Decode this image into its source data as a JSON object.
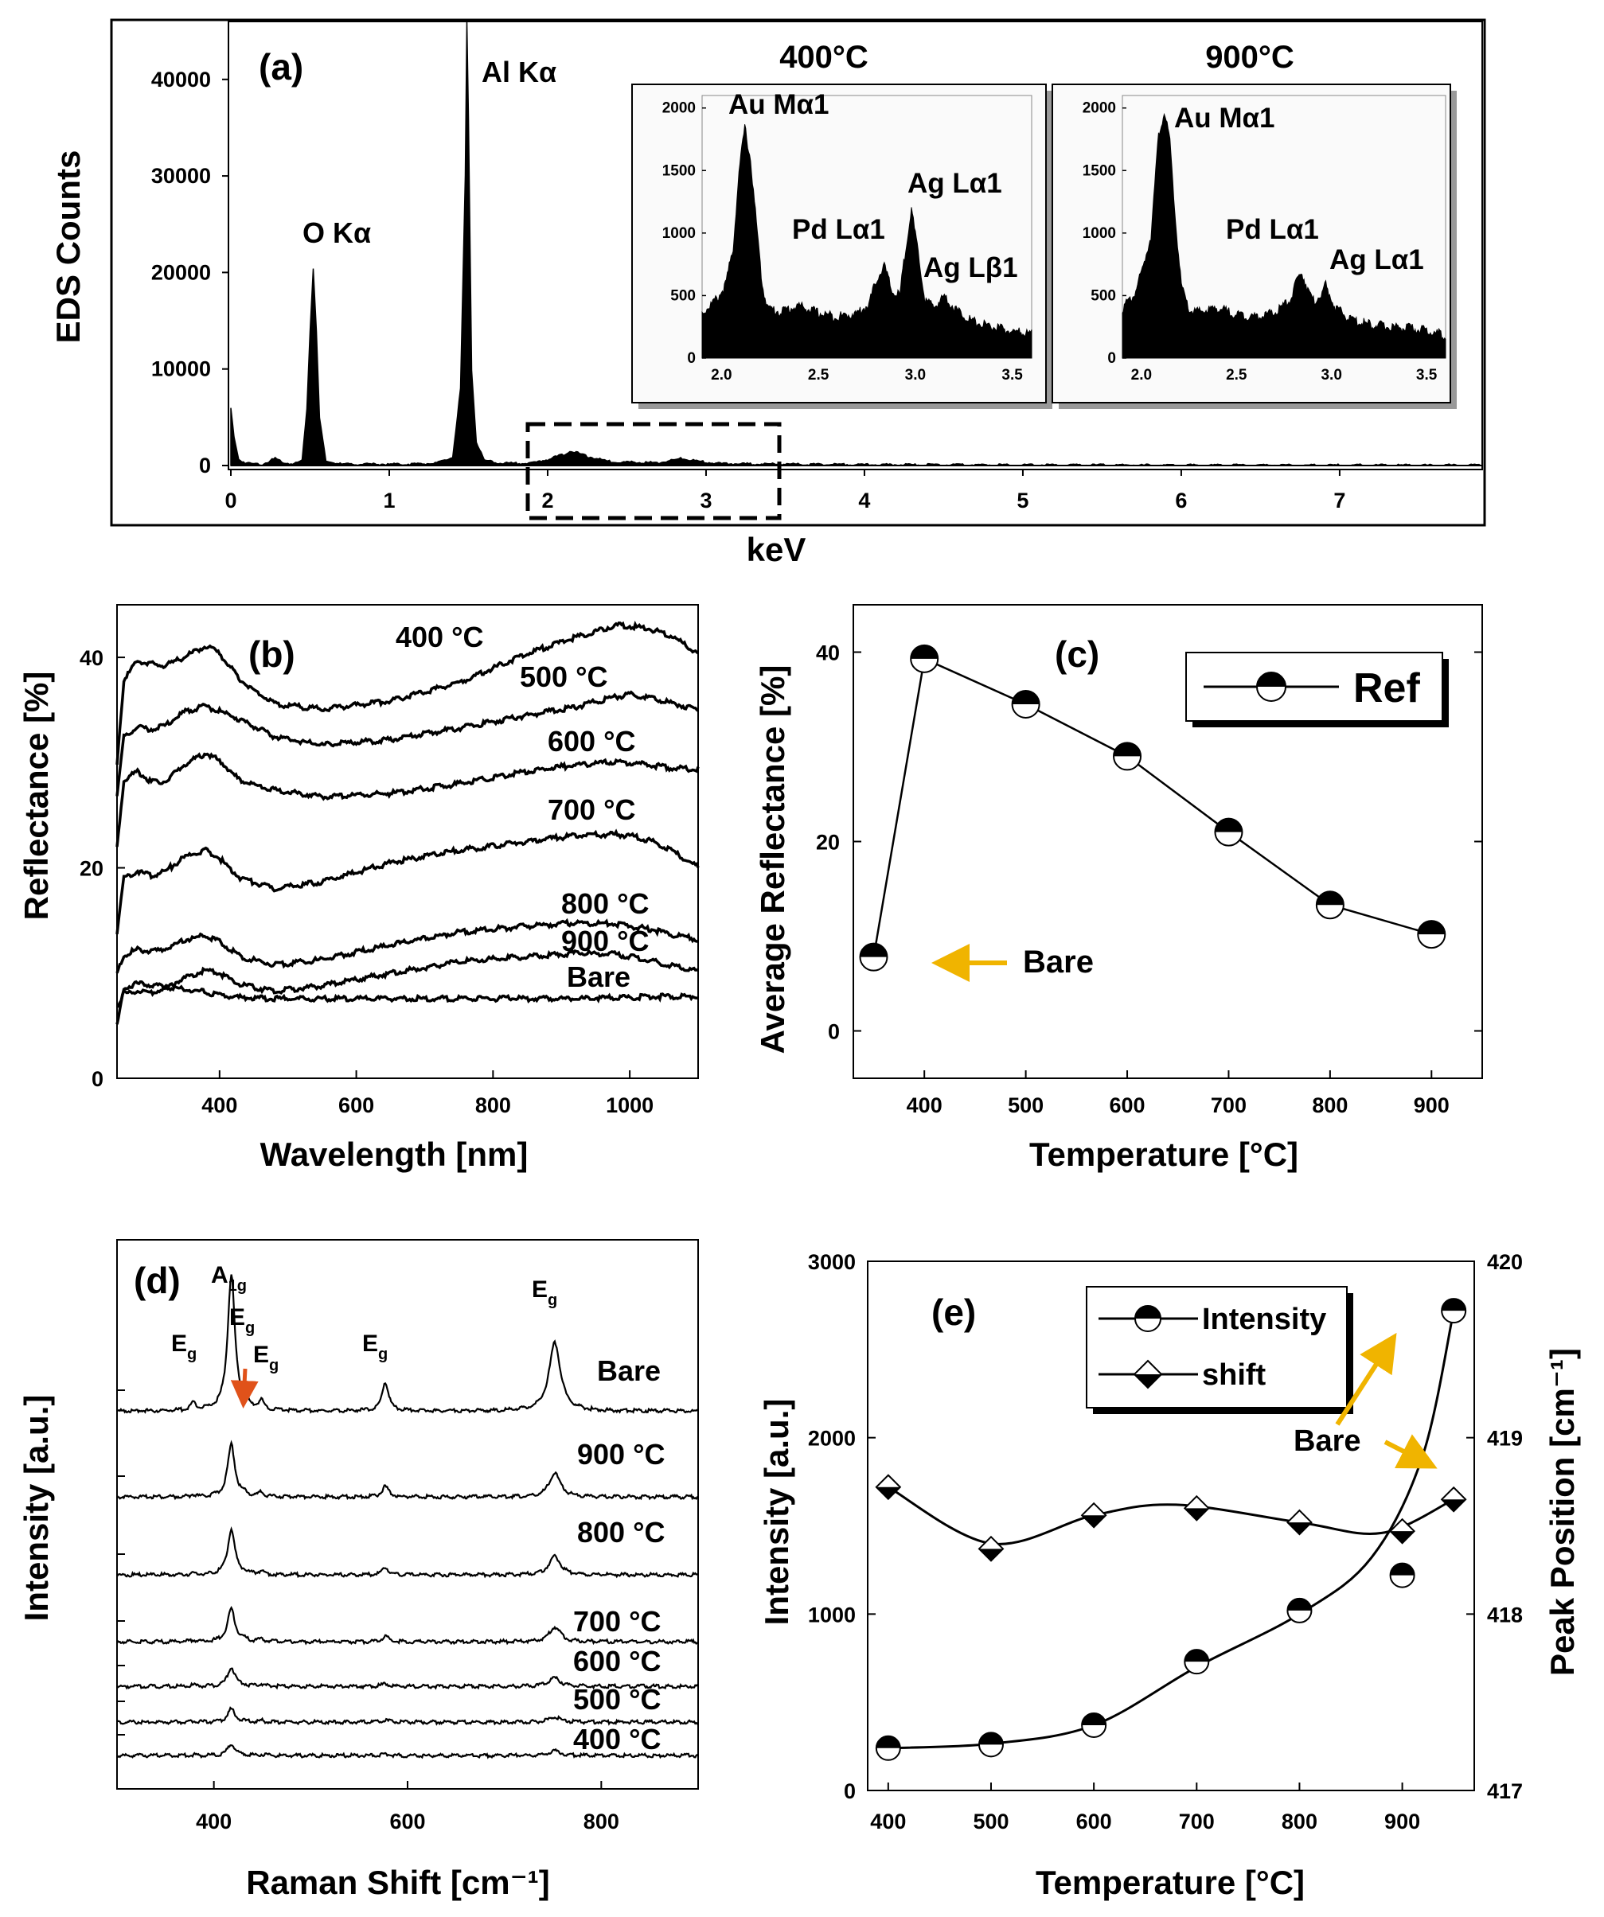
{
  "figure": {
    "colors": {
      "ink": "#000000",
      "accent_arrow": "#f0b400",
      "orange_arrow": "#e0521a",
      "background": "#ffffff",
      "inset_bg": "#fafafa"
    }
  },
  "chart_data": [
    {
      "panel": "(a)",
      "type": "area",
      "xlabel": "keV",
      "ylabel": "EDS Counts",
      "xlim": [
        0,
        7.9
      ],
      "ylim": [
        0,
        46000
      ],
      "xticks": [
        "0",
        "1",
        "2",
        "3",
        "4",
        "5",
        "6",
        "7"
      ],
      "yticks": [
        "0",
        "10000",
        "20000",
        "30000",
        "40000"
      ],
      "peaks": [
        {
          "label": "O Kα",
          "x": 0.52,
          "y": 20500
        },
        {
          "label": "Al Kα",
          "x": 1.49,
          "y": 46000
        }
      ],
      "series": [
        {
          "name": "EDS",
          "x": [
            0.0,
            0.02,
            0.05,
            0.1,
            0.2,
            0.28,
            0.3,
            0.35,
            0.4,
            0.45,
            0.48,
            0.5,
            0.52,
            0.54,
            0.56,
            0.6,
            0.7,
            0.9,
            1.1,
            1.3,
            1.4,
            1.45,
            1.48,
            1.49,
            1.5,
            1.52,
            1.55,
            1.6,
            1.7,
            1.9,
            2.0,
            2.1,
            2.15,
            2.25,
            2.4,
            2.7,
            2.85,
            2.95,
            3.1,
            3.5,
            4,
            5,
            6,
            7.9
          ],
          "y": [
            6000,
            3000,
            700,
            300,
            200,
            800,
            600,
            300,
            250,
            600,
            6000,
            14000,
            20500,
            14000,
            5000,
            500,
            200,
            200,
            200,
            300,
            900,
            8000,
            30000,
            46000,
            36000,
            10000,
            2500,
            600,
            300,
            300,
            700,
            1200,
            1600,
            1000,
            450,
            350,
            800,
            500,
            250,
            200,
            150,
            120,
            100,
            100
          ]
        }
      ]
    },
    {
      "panel": "(a) inset",
      "type": "area",
      "title": "400°C",
      "xlim": [
        1.9,
        3.6
      ],
      "ylim": [
        0,
        2100
      ],
      "xticks": [
        "2.0",
        "2.5",
        "3.0",
        "3.5"
      ],
      "yticks": [
        "0",
        "500",
        "1000",
        "1500",
        "2000"
      ],
      "peaks": [
        {
          "label": "Au Mα1",
          "x": 2.12,
          "y": 1870
        },
        {
          "label": "Pd Lα1",
          "x": 2.84,
          "y": 760
        },
        {
          "label": "Ag Lα1",
          "x": 2.98,
          "y": 1210
        },
        {
          "label": "Ag Lβ1",
          "x": 3.15,
          "y": 520
        }
      ],
      "series": [
        {
          "name": "400°C",
          "x": [
            1.9,
            1.98,
            2.02,
            2.06,
            2.09,
            2.12,
            2.15,
            2.18,
            2.21,
            2.24,
            2.3,
            2.4,
            2.5,
            2.6,
            2.7,
            2.76,
            2.8,
            2.84,
            2.88,
            2.92,
            2.95,
            2.98,
            3.01,
            3.05,
            3.1,
            3.15,
            3.2,
            3.3,
            3.4,
            3.5,
            3.6
          ],
          "y": [
            380,
            500,
            600,
            900,
            1500,
            1870,
            1600,
            1100,
            600,
            420,
            390,
            440,
            380,
            350,
            380,
            450,
            650,
            760,
            550,
            520,
            900,
            1210,
            900,
            480,
            430,
            520,
            420,
            310,
            270,
            230,
            220
          ]
        }
      ]
    },
    {
      "panel": "(a) inset",
      "type": "area",
      "title": "900°C",
      "xlim": [
        1.9,
        3.6
      ],
      "ylim": [
        0,
        2100
      ],
      "xticks": [
        "2.0",
        "2.5",
        "3.0",
        "3.5"
      ],
      "yticks": [
        "0",
        "500",
        "1000",
        "1500",
        "2000"
      ],
      "peaks": [
        {
          "label": "Au Mα1",
          "x": 2.12,
          "y": 1990
        },
        {
          "label": "Pd Lα1",
          "x": 2.84,
          "y": 720
        },
        {
          "label": "Ag Lα1",
          "x": 2.97,
          "y": 600
        }
      ],
      "series": [
        {
          "name": "900°C",
          "x": [
            1.9,
            1.96,
            2.0,
            2.05,
            2.09,
            2.12,
            2.15,
            2.18,
            2.21,
            2.25,
            2.3,
            2.4,
            2.5,
            2.6,
            2.7,
            2.78,
            2.84,
            2.9,
            2.94,
            2.97,
            3.02,
            3.1,
            3.2,
            3.3,
            3.4,
            3.5,
            3.6
          ],
          "y": [
            420,
            520,
            700,
            1000,
            1800,
            1990,
            1750,
            1100,
            600,
            400,
            390,
            420,
            370,
            350,
            380,
            480,
            720,
            470,
            520,
            600,
            420,
            330,
            290,
            270,
            260,
            240,
            200
          ]
        }
      ]
    },
    {
      "panel": "(b)",
      "type": "line",
      "xlabel": "Wavelength [nm]",
      "ylabel": "Reflectance [%]",
      "xlim": [
        250,
        1100
      ],
      "ylim": [
        0,
        45
      ],
      "xticks": [
        "400",
        "600",
        "800",
        "1000"
      ],
      "yticks": [
        "0",
        "20",
        "40"
      ],
      "x": [
        250,
        260,
        280,
        300,
        320,
        350,
        380,
        400,
        430,
        480,
        550,
        650,
        750,
        850,
        920,
        980,
        1000,
        1030,
        1060,
        1100
      ],
      "series": [
        {
          "name": "400 °C",
          "values": [
            30,
            38,
            39.8,
            39.5,
            39.3,
            40.2,
            41.2,
            40.5,
            38,
            35.7,
            35.2,
            36,
            37.7,
            40.5,
            42,
            43.2,
            43.1,
            42.8,
            42.2,
            40.5
          ]
        },
        {
          "name": "500 °C",
          "values": [
            27,
            32.5,
            33.5,
            33.3,
            33.6,
            35,
            35.5,
            35,
            34.2,
            32.6,
            31.8,
            32.3,
            33.4,
            34.6,
            35.4,
            36.4,
            36.6,
            36.3,
            35.8,
            35.2
          ]
        },
        {
          "name": "600 °C",
          "values": [
            22,
            28.5,
            29.3,
            28.3,
            28.3,
            30,
            31,
            30.3,
            28.4,
            27.5,
            26.9,
            27.2,
            28.1,
            29.3,
            29.9,
            30.2,
            30.1,
            29.9,
            29.6,
            29.5
          ]
        },
        {
          "name": "700 °C",
          "values": [
            14,
            19.2,
            19.8,
            19.4,
            19.8,
            21.2,
            21.8,
            21,
            19.2,
            18.1,
            18.8,
            20.6,
            21.8,
            22.6,
            23.2,
            23.3,
            23.2,
            22.7,
            21.8,
            20.2
          ]
        },
        {
          "name": "800 °C",
          "values": [
            10,
            11.8,
            12.4,
            12.2,
            12.4,
            13.3,
            13.7,
            13.1,
            11.7,
            10.9,
            11.4,
            12.8,
            14,
            14.6,
            14.9,
            14.8,
            14.6,
            14.3,
            13.8,
            13.3
          ]
        },
        {
          "name": "900 °C",
          "values": [
            7,
            8.2,
            8.4,
            8.2,
            8.7,
            9.7,
            10.4,
            10.1,
            9,
            8.4,
            8.9,
            10.1,
            11.2,
            11.7,
            12,
            11.9,
            11.7,
            11.3,
            10.8,
            10.3
          ]
        },
        {
          "name": "Bare",
          "values": [
            5,
            8.7,
            9.1,
            9,
            8.8,
            8.6,
            8.3,
            8,
            7.8,
            7.7,
            7.7,
            7.7,
            7.7,
            7.7,
            7.7,
            7.8,
            7.8,
            7.9,
            7.9,
            7.9
          ]
        }
      ]
    },
    {
      "panel": "(c)",
      "type": "line",
      "xlabel": "Temperature [°C]",
      "ylabel": "Average Reflectance [%]",
      "xlim": [
        330,
        950
      ],
      "ylim": [
        -5,
        45
      ],
      "xticks": [
        "400",
        "500",
        "600",
        "700",
        "800",
        "900"
      ],
      "yticks": [
        "0",
        "20",
        "40"
      ],
      "legend": [
        "Ref"
      ],
      "annotation": "Bare",
      "series": [
        {
          "name": "Ref",
          "x": [
            350,
            400,
            500,
            600,
            700,
            800,
            900
          ],
          "values": [
            7.8,
            39.3,
            34.5,
            29,
            21,
            13.3,
            10.2
          ]
        }
      ]
    },
    {
      "panel": "(d)",
      "type": "line",
      "xlabel": "Raman Shift [cm⁻¹]",
      "ylabel": "Intensity [a.u.]",
      "xlim": [
        300,
        900
      ],
      "xticks": [
        "400",
        "600",
        "800"
      ],
      "peak_labels": [
        {
          "label": "A",
          "sub": "1g",
          "x": 418
        },
        {
          "label": "E",
          "sub": "g",
          "x": 379
        },
        {
          "label": "E",
          "sub": "g",
          "x": 432
        },
        {
          "label": "E",
          "sub": "g",
          "x": 449
        },
        {
          "label": "E",
          "sub": "g",
          "x": 577
        },
        {
          "label": "E",
          "sub": "g",
          "x": 752
        }
      ],
      "peak_positions": [
        379,
        418,
        432,
        449,
        577,
        752
      ],
      "series": [
        {
          "name": "Bare",
          "amplitudes": [
            1.5,
            26,
            1.7,
            1.8,
            5.5,
            13
          ]
        },
        {
          "name": "900 °C",
          "amplitudes": [
            0.4,
            10,
            0.5,
            0.8,
            2,
            4.5
          ]
        },
        {
          "name": "800 °C",
          "amplitudes": [
            0.3,
            8.7,
            0.4,
            0.7,
            1.5,
            3.6
          ]
        },
        {
          "name": "700 °C",
          "amplitudes": [
            0.3,
            6.4,
            0.3,
            0.6,
            1.1,
            2.8
          ]
        },
        {
          "name": "600 °C",
          "amplitudes": [
            0.2,
            3.6,
            0.2,
            0.4,
            0.5,
            1.6
          ]
        },
        {
          "name": "500 °C",
          "amplitudes": [
            0.2,
            2.5,
            0.1,
            0.3,
            0.4,
            1.0
          ]
        },
        {
          "name": "400 °C",
          "amplitudes": [
            0.1,
            2.2,
            0.1,
            0.2,
            0.3,
            0.9
          ]
        }
      ]
    },
    {
      "panel": "(e)",
      "type": "line",
      "xlabel": "Temperature [°C]",
      "ylabel": "Intensity [a.u.]",
      "y2label": "Peak Position [cm⁻¹]",
      "xlim": [
        380,
        970
      ],
      "ylim": [
        0,
        3000
      ],
      "y2lim": [
        417,
        420
      ],
      "xticks": [
        "400",
        "500",
        "600",
        "700",
        "800",
        "900"
      ],
      "yticks": [
        "0",
        "1000",
        "2000",
        "3000"
      ],
      "y2ticks": [
        "417",
        "418",
        "419",
        "420"
      ],
      "legend": [
        "Intensity",
        "shift"
      ],
      "annotation": "Bare",
      "series": [
        {
          "name": "Intensity",
          "axis": "left",
          "x": [
            400,
            500,
            600,
            700,
            800,
            900,
            950
          ],
          "values": [
            240,
            260,
            370,
            730,
            1020,
            1220,
            2720
          ]
        },
        {
          "name": "shift",
          "axis": "right",
          "x": [
            400,
            500,
            600,
            700,
            800,
            900,
            950
          ],
          "values": [
            418.72,
            418.37,
            418.56,
            418.6,
            418.52,
            418.47,
            418.65
          ]
        }
      ]
    }
  ]
}
